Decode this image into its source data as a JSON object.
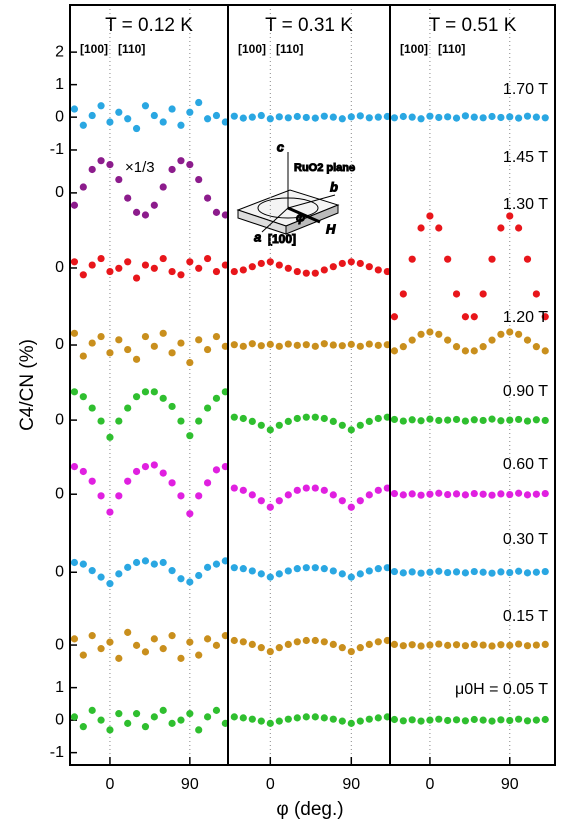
{
  "chart_data": [
    {
      "type": "scatter",
      "title": "T = 0.12 K",
      "ylabel": "C4/CN (%)",
      "annotations": [
        "[100]",
        "[110]",
        "×1/3"
      ],
      "x": [
        -40,
        -30,
        -20,
        -10,
        0,
        10,
        20,
        30,
        40,
        50,
        60,
        70,
        80,
        90,
        100,
        110,
        120,
        130
      ],
      "xlim": [
        -45,
        133
      ],
      "xticks": [
        0,
        90
      ],
      "grid": true,
      "ylim": [
        -1.38,
        22
      ],
      "yticks": [
        {
          "value": 20.55,
          "label": "2"
        },
        {
          "value": 19.55,
          "label": "1"
        },
        {
          "value": 18.55,
          "label": "0"
        },
        {
          "value": 17.54,
          "label": "-1"
        },
        {
          "value": 16.22,
          "label": "0"
        },
        {
          "value": 13.91,
          "label": "0"
        },
        {
          "value": 11.54,
          "label": "0"
        },
        {
          "value": 9.23,
          "label": "0"
        },
        {
          "value": 6.95,
          "label": "0"
        },
        {
          "value": 4.55,
          "label": "0"
        },
        {
          "value": 2.31,
          "label": "0"
        },
        1,
        0,
        -1
      ],
      "series": [
        {
          "color": "#2aa7e2",
          "values": [
            18.8,
            18.3,
            18.6,
            18.9,
            18.4,
            18.7,
            18.5,
            18.2,
            18.9,
            18.6,
            18.4,
            18.8,
            18.3,
            18.7,
            19.0,
            18.5,
            18.6,
            18.4
          ]
        },
        {
          "color": "#8c1c8c",
          "values": [
            15.84,
            16.4,
            16.94,
            17.21,
            17.09,
            16.63,
            16.06,
            15.62,
            15.54,
            15.84,
            16.4,
            16.94,
            17.21,
            17.09,
            16.63,
            16.06,
            15.62,
            15.54
          ]
        },
        {
          "color": "#e8161b",
          "values": [
            14.1,
            13.7,
            14.0,
            14.2,
            13.8,
            13.9,
            14.1,
            13.6,
            14.0,
            13.9,
            14.2,
            13.8,
            13.7,
            14.1,
            13.9,
            14.2,
            13.8,
            14.0
          ]
        },
        {
          "color": "#c98f1d",
          "values": [
            11.9,
            11.2,
            11.6,
            11.8,
            11.3,
            11.7,
            11.4,
            11.1,
            11.8,
            11.5,
            11.9,
            11.3,
            11.6,
            11.0,
            11.7,
            11.4,
            11.8,
            11.5
          ]
        },
        {
          "color": "#2fbf2f",
          "values": [
            10.1,
            9.95,
            9.6,
            9.2,
            8.7,
            9.2,
            9.6,
            9.95,
            10.1,
            10.1,
            9.9,
            9.65,
            9.2,
            8.75,
            9.2,
            9.6,
            9.9,
            10.1
          ]
        },
        {
          "color": "#e020e0",
          "values": [
            7.8,
            7.65,
            7.35,
            6.9,
            6.4,
            6.9,
            7.35,
            7.65,
            7.8,
            7.85,
            7.6,
            7.3,
            6.9,
            6.35,
            6.9,
            7.3,
            7.7,
            7.8
          ]
        },
        {
          "color": "#2aa7e2",
          "values": [
            4.85,
            4.8,
            4.6,
            4.4,
            4.2,
            4.5,
            4.7,
            4.85,
            4.9,
            4.8,
            4.85,
            4.6,
            4.35,
            4.25,
            4.45,
            4.7,
            4.8,
            4.9
          ]
        },
        {
          "color": "#c98f1d",
          "values": [
            2.5,
            2.0,
            2.6,
            2.2,
            2.4,
            1.9,
            2.7,
            2.3,
            2.1,
            2.5,
            2.2,
            2.6,
            1.9,
            2.4,
            2.0,
            2.5,
            2.3,
            2.6
          ]
        },
        {
          "color": "#2fbf2f",
          "values": [
            0.1,
            -0.2,
            0.3,
            0.0,
            -0.3,
            0.2,
            -0.1,
            0.2,
            -0.2,
            0.1,
            0.3,
            -0.1,
            0.0,
            0.2,
            -0.3,
            0.1,
            0.3,
            -0.1
          ]
        }
      ]
    },
    {
      "type": "scatter",
      "title": "T = 0.31 K",
      "xlabel": "φ (deg.)",
      "annotations": [
        "[100]",
        "[110]",
        "c",
        "RuO2 plane",
        "b",
        "φ",
        "H",
        "a",
        "[100]"
      ],
      "x": [
        -40,
        -30,
        -20,
        -10,
        0,
        10,
        20,
        30,
        40,
        50,
        60,
        70,
        80,
        90,
        100,
        110,
        120,
        130
      ],
      "xlim": [
        -47,
        133
      ],
      "xticks": [
        0,
        90
      ],
      "grid": true,
      "ylim": [
        -1.38,
        22
      ],
      "series": [
        {
          "color": "#2aa7e2",
          "values": [
            18.58,
            18.52,
            18.55,
            18.6,
            18.5,
            18.56,
            18.53,
            18.57,
            18.54,
            18.52,
            18.58,
            18.55,
            18.5,
            18.56,
            18.59,
            18.53,
            18.55,
            18.57
          ]
        },
        {
          "color": "#e8161b",
          "values": [
            13.8,
            13.85,
            13.95,
            14.05,
            14.1,
            14.0,
            13.9,
            13.8,
            13.75,
            13.75,
            13.85,
            13.95,
            14.05,
            14.1,
            14.05,
            13.95,
            13.85,
            13.8
          ]
        },
        {
          "color": "#c98f1d",
          "values": [
            11.55,
            11.5,
            11.58,
            11.52,
            11.56,
            11.5,
            11.57,
            11.53,
            11.55,
            11.5,
            11.58,
            11.54,
            11.52,
            11.56,
            11.5,
            11.57,
            11.53,
            11.55
          ]
        },
        {
          "color": "#2fbf2f",
          "values": [
            9.32,
            9.28,
            9.19,
            9.07,
            8.93,
            9.07,
            9.19,
            9.28,
            9.32,
            9.32,
            9.28,
            9.19,
            9.07,
            8.93,
            9.07,
            9.19,
            9.28,
            9.32
          ]
        },
        {
          "color": "#e020e0",
          "values": [
            7.14,
            7.07,
            6.93,
            6.75,
            6.55,
            6.75,
            6.93,
            7.07,
            7.14,
            7.14,
            7.07,
            6.93,
            6.75,
            6.55,
            6.75,
            6.93,
            7.07,
            7.14
          ]
        },
        {
          "color": "#2aa7e2",
          "values": [
            4.69,
            4.66,
            4.59,
            4.5,
            4.4,
            4.5,
            4.59,
            4.66,
            4.69,
            4.69,
            4.66,
            4.59,
            4.5,
            4.4,
            4.5,
            4.59,
            4.66,
            4.69
          ]
        },
        {
          "color": "#c98f1d",
          "values": [
            2.45,
            2.41,
            2.33,
            2.23,
            2.11,
            2.23,
            2.33,
            2.41,
            2.45,
            2.45,
            2.41,
            2.33,
            2.23,
            2.11,
            2.23,
            2.33,
            2.41,
            2.45
          ]
        },
        {
          "color": "#2fbf2f",
          "values": [
            0.1,
            0.07,
            0.03,
            -0.03,
            -0.1,
            -0.03,
            0.03,
            0.07,
            0.1,
            0.1,
            0.07,
            0.03,
            -0.03,
            -0.1,
            -0.03,
            0.03,
            0.07,
            0.1
          ]
        }
      ]
    },
    {
      "type": "scatter",
      "title": "T = 0.51 K",
      "annotations": [
        "[100]",
        "[110]"
      ],
      "field_labels": [
        "1.70 T",
        "1.45 T",
        "1.30 T",
        "1.20 T",
        "0.90 T",
        "0.60 T",
        "0.30 T",
        "0.15 T",
        "μ0H = 0.05 T"
      ],
      "x": [
        -40,
        -30,
        -20,
        -10,
        0,
        10,
        20,
        30,
        40,
        50,
        60,
        70,
        80,
        90,
        100,
        110,
        120,
        130
      ],
      "xlim": [
        -45,
        141
      ],
      "xticks": [
        0,
        90
      ],
      "grid": true,
      "ylim": [
        -1.38,
        22
      ],
      "series": [
        {
          "color": "#2aa7e2",
          "values": [
            18.53,
            18.57,
            18.55,
            18.5,
            18.58,
            18.54,
            18.56,
            18.52,
            18.59,
            18.55,
            18.53,
            18.57,
            18.54,
            18.56,
            18.52,
            18.58,
            18.55,
            18.53
          ]
        },
        {
          "color": "#e8161b",
          "values": [
            12.41,
            13.11,
            14.18,
            15.14,
            15.51,
            15.14,
            14.18,
            13.11,
            12.41,
            12.41,
            13.11,
            14.18,
            15.14,
            15.51,
            15.14,
            14.18,
            13.11,
            12.41
          ]
        },
        {
          "color": "#c98f1d",
          "values": [
            11.36,
            11.49,
            11.69,
            11.87,
            11.94,
            11.87,
            11.69,
            11.49,
            11.36,
            11.36,
            11.49,
            11.69,
            11.87,
            11.94,
            11.87,
            11.69,
            11.49,
            11.36
          ]
        },
        {
          "color": "#2fbf2f",
          "values": [
            9.25,
            9.2,
            9.24,
            9.21,
            9.26,
            9.22,
            9.23,
            9.25,
            9.2,
            9.24,
            9.22,
            9.26,
            9.21,
            9.23,
            9.25,
            9.2,
            9.24,
            9.22
          ]
        },
        {
          "color": "#e020e0",
          "values": [
            6.97,
            6.93,
            6.96,
            6.92,
            6.95,
            6.98,
            6.94,
            6.96,
            6.93,
            6.97,
            6.95,
            6.92,
            6.96,
            6.94,
            6.98,
            6.93,
            6.95,
            6.97
          ]
        },
        {
          "color": "#2aa7e2",
          "values": [
            4.57,
            4.53,
            4.56,
            4.52,
            4.55,
            4.58,
            4.54,
            4.56,
            4.53,
            4.57,
            4.55,
            4.52,
            4.56,
            4.54,
            4.58,
            4.53,
            4.55,
            4.57
          ]
        },
        {
          "color": "#c98f1d",
          "values": [
            2.33,
            2.29,
            2.32,
            2.28,
            2.31,
            2.34,
            2.3,
            2.32,
            2.29,
            2.33,
            2.31,
            2.28,
            2.32,
            2.3,
            2.34,
            2.29,
            2.31,
            2.33
          ]
        },
        {
          "color": "#2fbf2f",
          "values": [
            0.02,
            -0.02,
            0.01,
            -0.03,
            0,
            0.03,
            -0.01,
            0.01,
            -0.02,
            0.02,
            0,
            -0.03,
            0.01,
            -0.01,
            0.03,
            -0.02,
            0,
            0.02
          ]
        }
      ]
    }
  ]
}
